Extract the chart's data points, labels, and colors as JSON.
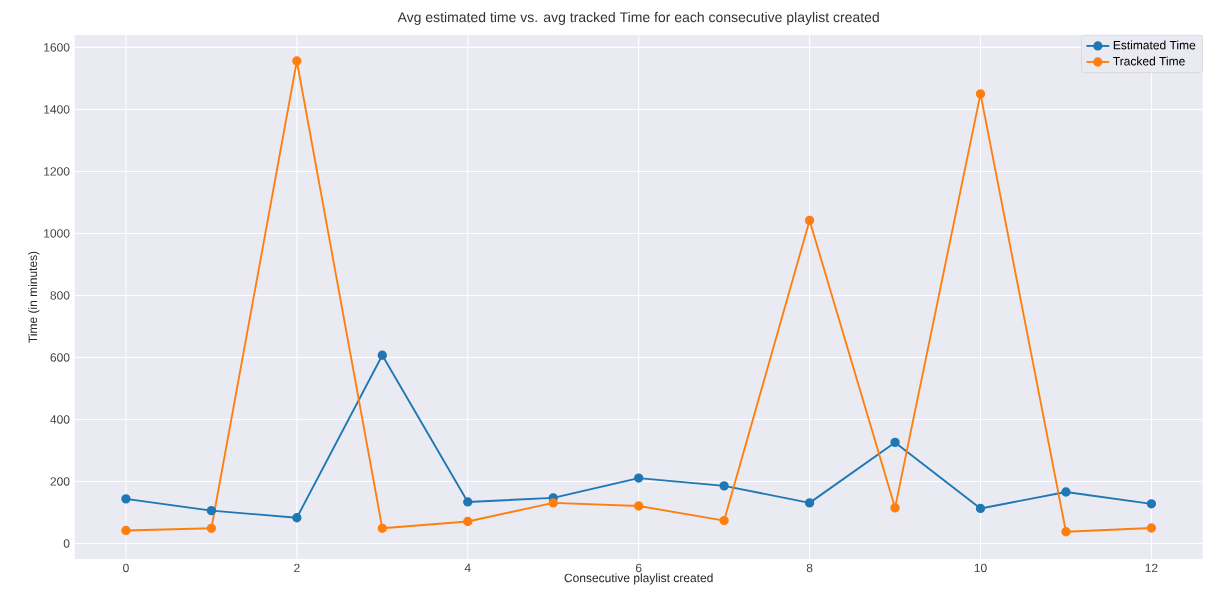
{
  "chart_data": {
    "type": "line",
    "title": "Avg estimated time vs. avg tracked Time for each consecutive playlist created",
    "xlabel": "Consecutive playlist created",
    "ylabel": "Time (in minutes)",
    "x": [
      0,
      1,
      2,
      3,
      4,
      5,
      6,
      7,
      8,
      9,
      10,
      11,
      12
    ],
    "series": [
      {
        "name": "Estimated Time",
        "color": "#1f77b4",
        "values": [
          144,
          106,
          83,
          607,
          134,
          147,
          211,
          186,
          131,
          326,
          113,
          166,
          128
        ]
      },
      {
        "name": "Tracked Time",
        "color": "#ff7f0e",
        "values": [
          42,
          49,
          1556,
          49,
          71,
          131,
          121,
          74,
          1042,
          115,
          1450,
          38,
          50
        ]
      }
    ],
    "xlim": [
      -0.6,
      12.6
    ],
    "ylim": [
      -50,
      1640
    ],
    "xticks": [
      0,
      2,
      4,
      6,
      8,
      10,
      12
    ],
    "yticks": [
      0,
      200,
      400,
      600,
      800,
      1000,
      1200,
      1400,
      1600
    ],
    "grid": true,
    "legend": "top right",
    "marker": "circle",
    "line_style": "solid"
  }
}
